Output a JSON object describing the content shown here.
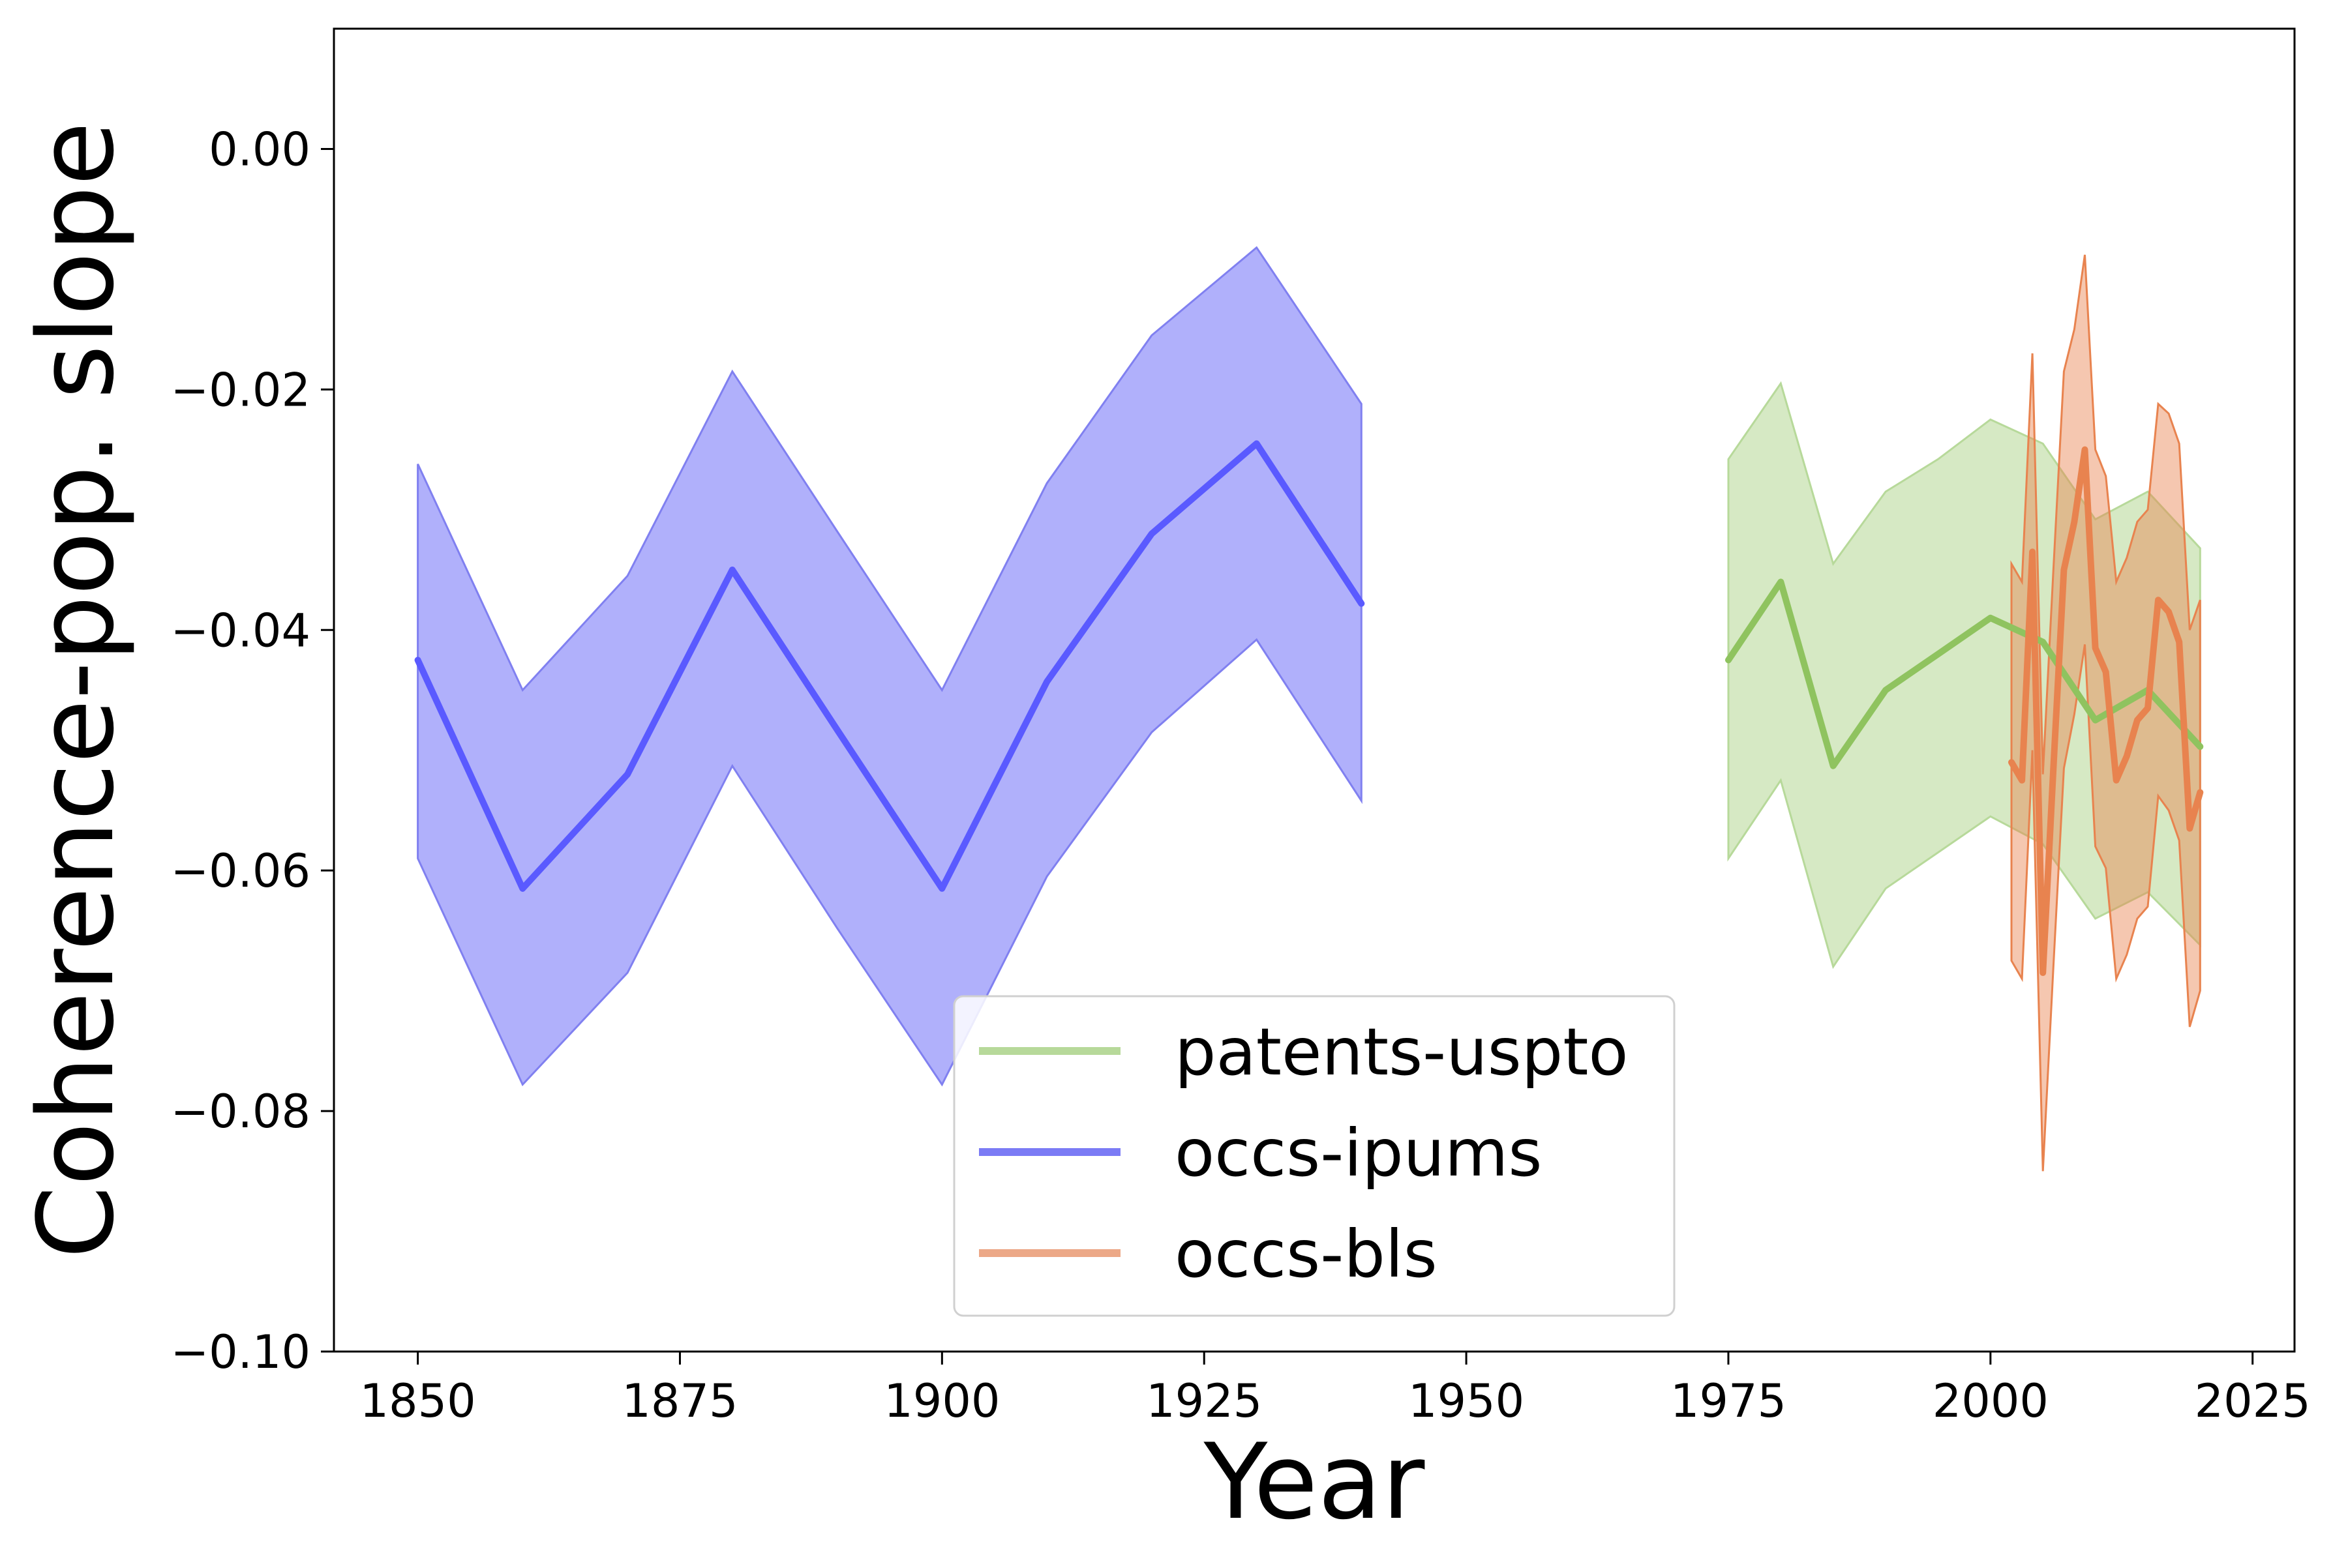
{
  "chart_data": {
    "type": "line",
    "title": "",
    "xlabel": "Year",
    "ylabel": "Coherence-pop. slope",
    "xlim": [
      1842,
      2029
    ],
    "ylim": [
      -0.1,
      0.01
    ],
    "xticks": [
      1850,
      1875,
      1900,
      1925,
      1950,
      1975,
      2000,
      2025
    ],
    "xtick_labels": [
      "1850",
      "1875",
      "1900",
      "1925",
      "1950",
      "1975",
      "2000",
      "2025"
    ],
    "yticks": [
      0.0,
      -0.02,
      -0.04,
      -0.06,
      -0.08,
      -0.1
    ],
    "ytick_labels": [
      "0.00",
      "−0.02",
      "−0.04",
      "−0.06",
      "−0.08",
      "−0.10"
    ],
    "grid": false,
    "legend_position": "lower-center",
    "series": [
      {
        "name": "patents-uspto",
        "color": "#8fc35f",
        "x": [
          1975,
          1980,
          1985,
          1990,
          1995,
          2000,
          2005,
          2010,
          2015,
          2020
        ],
        "y": [
          -0.0425,
          -0.036,
          -0.0513,
          -0.045,
          -0.042,
          -0.039,
          -0.041,
          -0.0475,
          -0.045,
          -0.0497
        ],
        "upper": [
          -0.0258,
          -0.0195,
          -0.0345,
          -0.0285,
          -0.0258,
          -0.0225,
          -0.0245,
          -0.0308,
          -0.0285,
          -0.0332
        ],
        "lower": [
          -0.059,
          -0.0525,
          -0.068,
          -0.0615,
          -0.0585,
          -0.0555,
          -0.0578,
          -0.064,
          -0.0618,
          -0.0662
        ]
      },
      {
        "name": "occs-ipums",
        "color": "#5a5aff",
        "x": [
          1850,
          1860,
          1870,
          1880,
          1890,
          1900,
          1910,
          1920,
          1930,
          1940
        ],
        "y": [
          -0.0425,
          -0.0615,
          -0.052,
          -0.035,
          -0.0483,
          -0.0615,
          -0.0443,
          -0.032,
          -0.0245,
          -0.0378
        ],
        "upper": [
          -0.0262,
          -0.045,
          -0.0355,
          -0.0185,
          -0.0318,
          -0.045,
          -0.0278,
          -0.0155,
          -0.0082,
          -0.0212
        ],
        "lower": [
          -0.059,
          -0.0778,
          -0.0685,
          -0.0513,
          -0.0648,
          -0.0778,
          -0.0605,
          -0.0485,
          -0.0408,
          -0.0542
        ]
      },
      {
        "name": "occs-bls",
        "color": "#e8834f",
        "x": [
          2002,
          2003,
          2004,
          2005,
          2006,
          2007,
          2008,
          2009,
          2010,
          2011,
          2012,
          2013,
          2014,
          2015,
          2016,
          2017,
          2018,
          2019,
          2020
        ],
        "y": [
          -0.051,
          -0.0525,
          -0.0335,
          -0.0685,
          -0.0515,
          -0.035,
          -0.031,
          -0.025,
          -0.0415,
          -0.0435,
          -0.0525,
          -0.0505,
          -0.0475,
          -0.0465,
          -0.0375,
          -0.0385,
          -0.041,
          -0.0565,
          -0.0535
        ],
        "upper": [
          -0.0345,
          -0.036,
          -0.017,
          -0.052,
          -0.035,
          -0.0185,
          -0.015,
          -0.0088,
          -0.025,
          -0.0272,
          -0.036,
          -0.034,
          -0.031,
          -0.03,
          -0.0212,
          -0.022,
          -0.0245,
          -0.04,
          -0.0375
        ],
        "lower": [
          -0.0675,
          -0.069,
          -0.05,
          -0.085,
          -0.068,
          -0.0515,
          -0.047,
          -0.0412,
          -0.058,
          -0.0598,
          -0.069,
          -0.067,
          -0.064,
          -0.063,
          -0.0538,
          -0.055,
          -0.0575,
          -0.073,
          -0.07
        ]
      }
    ]
  }
}
